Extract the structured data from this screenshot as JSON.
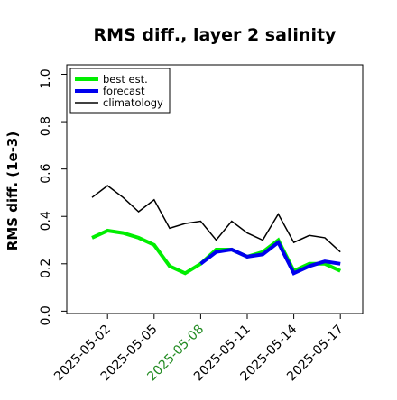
{
  "chart_data": {
    "type": "line",
    "title": "RMS diff., layer 2 salinity",
    "ylabel": "RMS diff. (1e-3)",
    "xlabel": "",
    "ylim": [
      -0.01,
      1.04
    ],
    "yticks": [
      0.0,
      0.2,
      0.4,
      0.6,
      0.8,
      1.0
    ],
    "ytick_labels": [
      "0.0",
      "0.2",
      "0.4",
      "0.6",
      "0.8",
      "1.0"
    ],
    "x": [
      "2025-05-01",
      "2025-05-02",
      "2025-05-03",
      "2025-05-04",
      "2025-05-05",
      "2025-05-06",
      "2025-05-07",
      "2025-05-08",
      "2025-05-09",
      "2025-05-10",
      "2025-05-11",
      "2025-05-12",
      "2025-05-13",
      "2025-05-14",
      "2025-05-15",
      "2025-05-16",
      "2025-05-17"
    ],
    "xticks": [
      "2025-05-02",
      "2025-05-05",
      "2025-05-08",
      "2025-05-11",
      "2025-05-14",
      "2025-05-17"
    ],
    "highlight_tick": "2025-05-08",
    "highlight_color": "#228B22",
    "legend_position": "upper-left",
    "grid": false,
    "series": [
      {
        "name": "best est.",
        "color": "#00ee00",
        "values": [
          0.31,
          0.34,
          0.33,
          0.31,
          0.28,
          0.19,
          0.16,
          0.2,
          0.26,
          0.26,
          0.23,
          0.25,
          0.3,
          0.17,
          0.2,
          0.2,
          0.17
        ]
      },
      {
        "name": "forecast",
        "color": "#0000ee",
        "values": [
          null,
          null,
          null,
          null,
          null,
          null,
          null,
          0.2,
          0.25,
          0.26,
          0.23,
          0.24,
          0.29,
          0.16,
          0.19,
          0.21,
          0.2
        ]
      },
      {
        "name": "climatology",
        "color": "#000000",
        "values": [
          0.48,
          0.53,
          0.48,
          0.42,
          0.47,
          0.35,
          0.37,
          0.38,
          0.3,
          0.38,
          0.33,
          0.3,
          0.41,
          0.29,
          0.32,
          0.31,
          0.25
        ]
      }
    ]
  }
}
